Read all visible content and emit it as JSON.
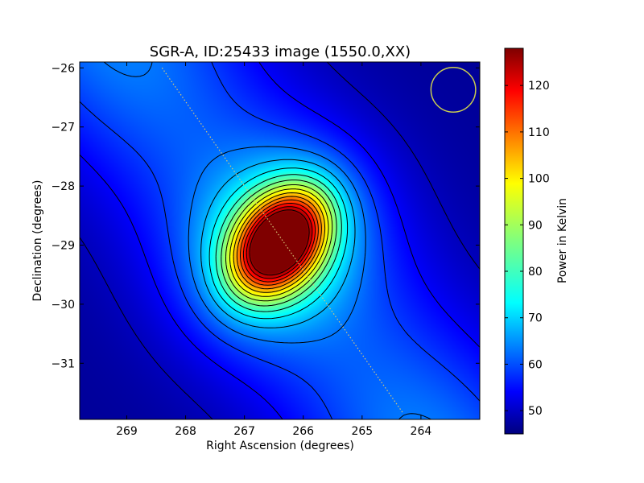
{
  "chart_data": {
    "type": "heatmap",
    "title": "SGR-A, ID:25433 image (1550.0,XX)",
    "xlabel": "Right Ascension (degrees)",
    "ylabel": "Declination (degrees)",
    "xlim": [
      269.8,
      263.0
    ],
    "ylim": [
      -31.95,
      -25.9
    ],
    "x_axis_inverted": true,
    "x_ticks": [
      269,
      268,
      267,
      266,
      265,
      264
    ],
    "x_tick_labels": [
      "269",
      "268",
      "267",
      "266",
      "265",
      "264"
    ],
    "y_ticks": [
      -26,
      -27,
      -28,
      -29,
      -30,
      -31
    ],
    "y_tick_labels": [
      "−26",
      "−27",
      "−28",
      "−29",
      "−30",
      "−31"
    ],
    "colorbar": {
      "label": "Power in Kelvin",
      "range": [
        45,
        128
      ],
      "ticks": [
        50,
        60,
        70,
        80,
        90,
        100,
        110,
        120
      ],
      "tick_labels": [
        "50",
        "60",
        "70",
        "80",
        "90",
        "100",
        "110",
        "120"
      ],
      "colormap": "jet"
    },
    "background_level": 55,
    "ridge": {
      "center_level": 65,
      "far_level": 47,
      "through": [
        266.5,
        -29.0
      ],
      "direction": [
        -4.2,
        -5.6
      ]
    },
    "source": {
      "ra": 266.4,
      "dec": -28.95,
      "peak": 128,
      "ellipse_angle_deg": -52
    },
    "contour_levels": [
      50,
      55,
      60,
      65,
      70,
      75,
      80,
      85,
      90,
      95,
      100,
      105,
      110,
      115,
      120,
      125
    ],
    "dotted_track": {
      "from": [
        268.4,
        -26.0
      ],
      "to": [
        264.3,
        -31.85
      ],
      "color": "#d8c878"
    },
    "beam_circle": {
      "ra": 263.45,
      "dec": -26.37,
      "radius_deg": 0.38,
      "color": "#c8cc50"
    },
    "grid": false,
    "legend": "none"
  }
}
